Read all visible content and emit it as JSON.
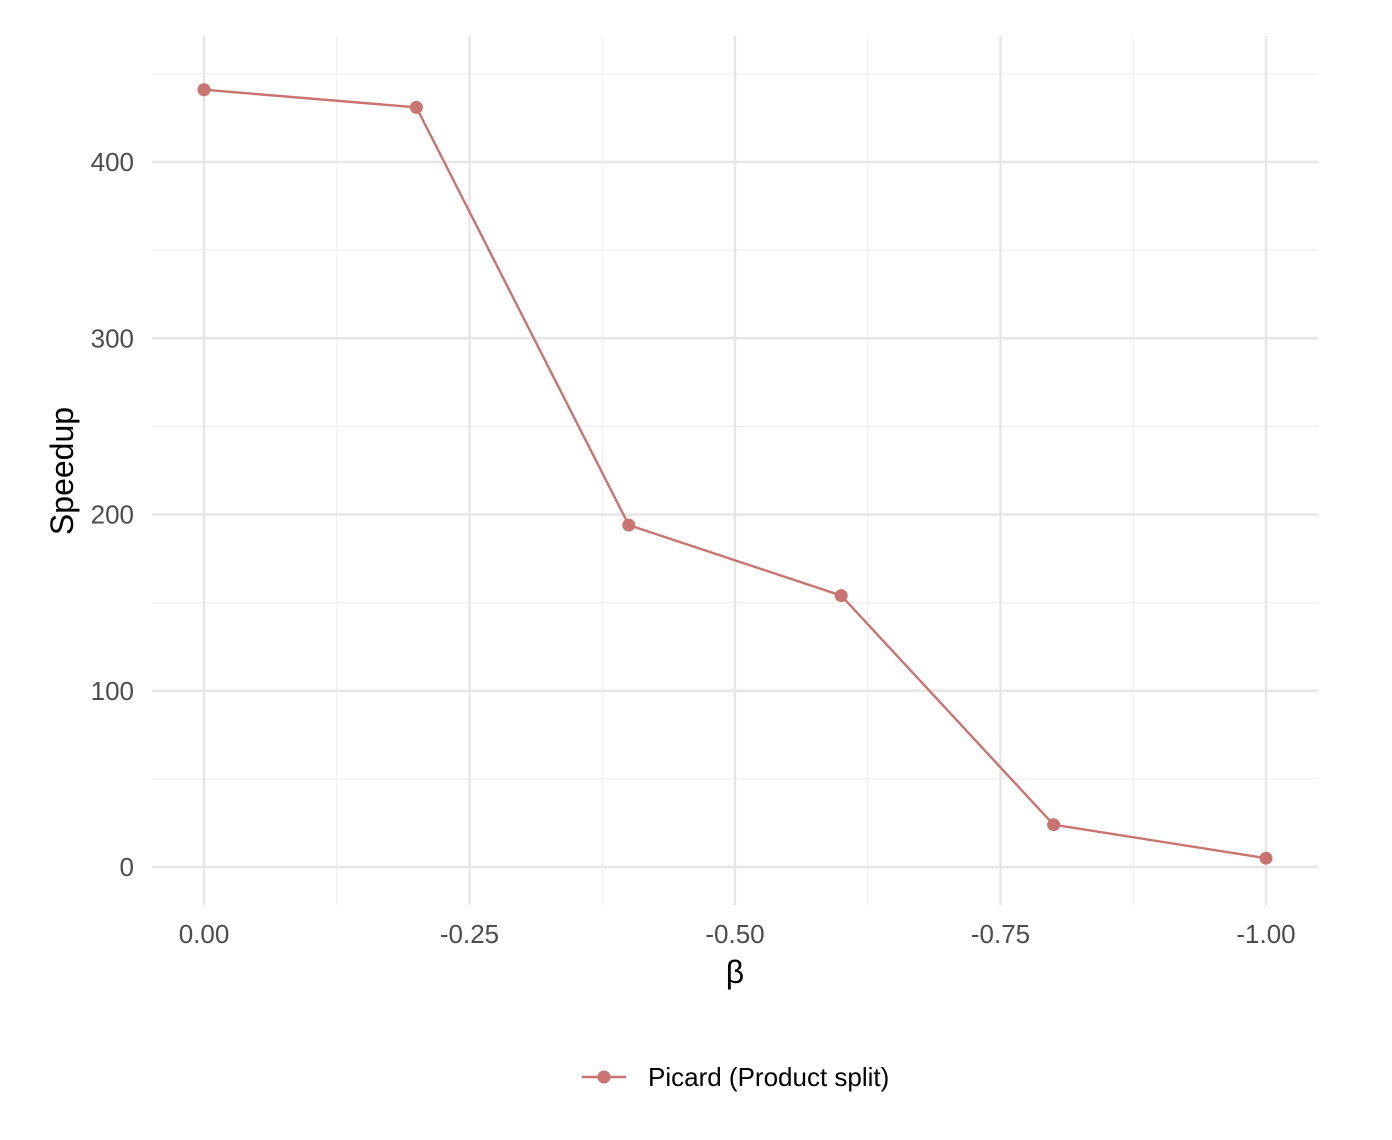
{
  "chart_data": {
    "type": "line",
    "xlabel": "β",
    "ylabel": "Speedup",
    "x_ticks": [
      "0.00",
      "-0.25",
      "-0.50",
      "-0.75",
      "-1.00"
    ],
    "x_tick_values": [
      0,
      -0.25,
      -0.5,
      -0.75,
      -1.0
    ],
    "y_ticks": [
      "0",
      "100",
      "200",
      "300",
      "400"
    ],
    "y_tick_values": [
      0,
      100,
      200,
      300,
      400
    ],
    "xlim": [
      0,
      -1.0
    ],
    "ylim": [
      0,
      450
    ],
    "x_reversed": true,
    "grid": true,
    "legend_position": "bottom",
    "series": [
      {
        "name": "Picard (Product split)",
        "color": "#c97470",
        "x": [
          0,
          -0.2,
          -0.4,
          -0.6,
          -0.8,
          -1.0
        ],
        "y": [
          441,
          431,
          194,
          154,
          24,
          5
        ]
      }
    ]
  }
}
